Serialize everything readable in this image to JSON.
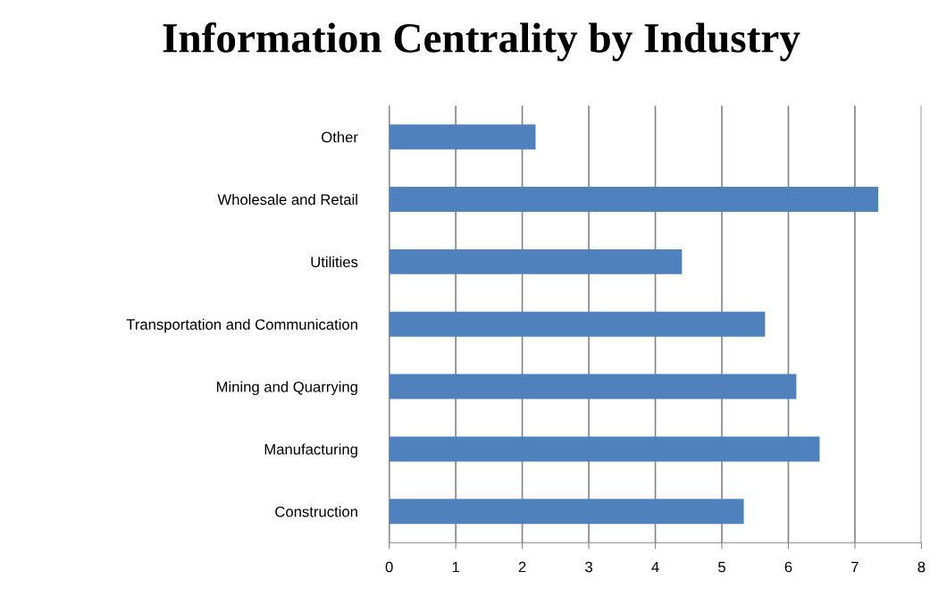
{
  "chart_data": {
    "type": "bar",
    "orientation": "horizontal",
    "title": "Information Centrality by Industry",
    "categories": [
      "Other",
      "Wholesale and Retail",
      "Utilities",
      "Transportation and Communication",
      "Mining and Quarrying",
      "Manufacturing",
      "Construction"
    ],
    "values": [
      2.2,
      7.35,
      4.4,
      5.65,
      6.12,
      6.47,
      5.33
    ],
    "color": "#4f81bd",
    "xlim": [
      0,
      8
    ],
    "xticks": [
      0,
      1,
      2,
      3,
      4,
      5,
      6,
      7,
      8
    ],
    "grid": "x"
  }
}
